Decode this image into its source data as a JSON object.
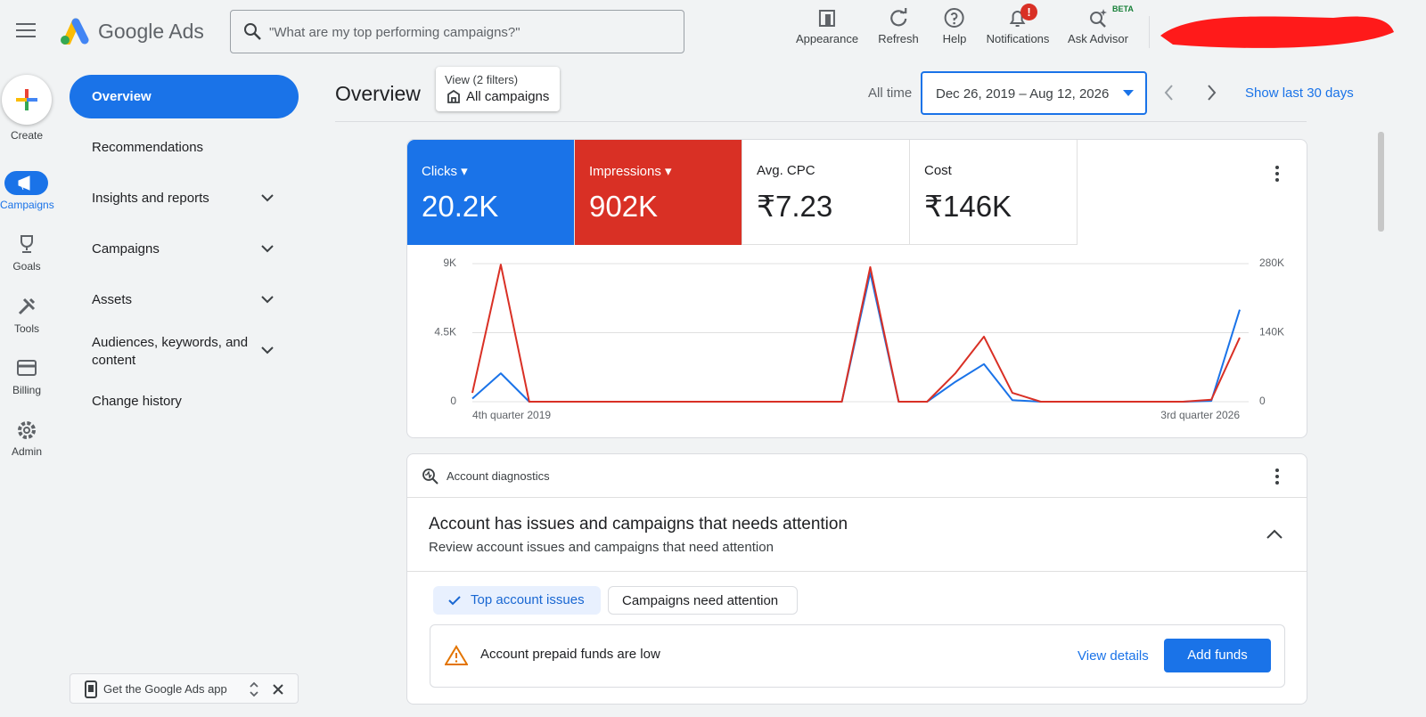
{
  "header": {
    "brand": "Google Ads",
    "search_placeholder": "\"What are my top performing campaigns?\"",
    "tools": [
      "Appearance",
      "Refresh",
      "Help",
      "Notifications",
      "Ask Advisor"
    ],
    "beta": "BETA",
    "badge": "!"
  },
  "rail": [
    "Create",
    "Campaigns",
    "Goals",
    "Tools",
    "Billing",
    "Admin"
  ],
  "nav": [
    "Overview",
    "Recommendations",
    "Insights and reports",
    "Campaigns",
    "Assets",
    "Audiences, keywords, and content",
    "Change history"
  ],
  "app_promo": "Get the Google Ads app",
  "page": {
    "title": "Overview",
    "filter_label": "View (2 filters)",
    "filter_value": "All campaigns",
    "range_label": "All time",
    "range": "Dec 26, 2019 – Aug 12, 2026",
    "show_last": "Show last 30 days"
  },
  "scorecards": [
    {
      "value": "20.2K"
    },
    {
      "value": "902K"
    },
    {
      "label": "Avg. CPC",
      "value": "₹7.23"
    },
    {
      "label": "Cost",
      "value": "₹146K"
    }
  ],
  "chart_data": {
    "type": "line",
    "categories": [
      "4th quarter 2019",
      null,
      null,
      null,
      null,
      null,
      null,
      null,
      null,
      null,
      null,
      null,
      null,
      null,
      null,
      null,
      null,
      null,
      null,
      null,
      null,
      null,
      null,
      null,
      null,
      null,
      null,
      "3rd quarter 2026"
    ],
    "series": [
      {
        "name": "Clicks",
        "color": "#1a73e8",
        "values": [
          200,
          1850,
          0,
          0,
          0,
          0,
          0,
          0,
          0,
          0,
          0,
          0,
          0,
          0,
          8400,
          0,
          0,
          1300,
          2450,
          100,
          0,
          0,
          0,
          0,
          0,
          0,
          50,
          6000
        ]
      },
      {
        "name": "Impressions",
        "color": "#d93025",
        "axis": "y2",
        "values": [
          18000,
          278000,
          0,
          0,
          0,
          0,
          0,
          0,
          0,
          0,
          0,
          0,
          0,
          0,
          273000,
          0,
          0,
          58000,
          132000,
          18000,
          0,
          0,
          0,
          0,
          0,
          0,
          4000,
          130000
        ]
      }
    ],
    "ylim": [
      0,
      9000
    ],
    "yticks": [
      0,
      {
        "value": 4500,
        "label": "4.5K"
      },
      {
        "value": 9000,
        "label": "9K"
      }
    ],
    "y2lim": [
      0,
      280000
    ],
    "y2ticks": [
      0,
      {
        "value": 140000,
        "label": "140K"
      },
      {
        "value": 280000,
        "label": "280K"
      }
    ],
    "grid": true
  },
  "diagnostics": {
    "title": "Account diagnostics",
    "heading": "Account has issues and campaigns that needs attention",
    "subheading": "Review account issues and campaigns that need attention",
    "tabs": [
      "Top account issues",
      "Campaigns need attention"
    ],
    "alert": "Account prepaid funds are low",
    "view_details": "View details",
    "add_funds": "Add funds"
  }
}
